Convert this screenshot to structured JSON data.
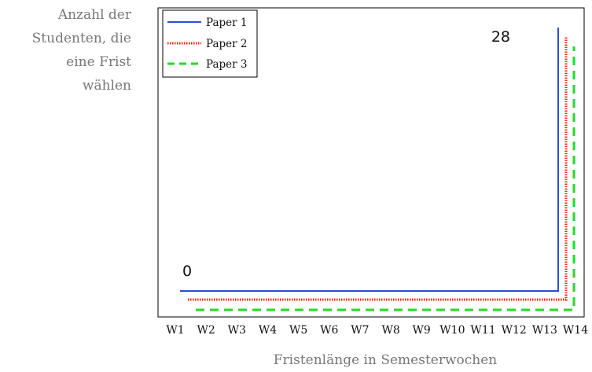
{
  "chart_data": {
    "type": "line",
    "x": [
      "W1",
      "W2",
      "W3",
      "W4",
      "W5",
      "W6",
      "W7",
      "W8",
      "W9",
      "W10",
      "W11",
      "W12",
      "W13",
      "W14"
    ],
    "xlabel": "Fristenlänge in Semesterwochen",
    "ylabel_lines": [
      "Anzahl der",
      "Studenten, die",
      "eine Frist",
      "wählen"
    ],
    "ylim": [
      0,
      28
    ],
    "series": [
      {
        "name": "Paper 1",
        "color": "#2b4fd8",
        "style": "solid",
        "values": [
          0,
          0,
          0,
          0,
          0,
          0,
          0,
          0,
          0,
          0,
          0,
          0,
          0,
          28
        ]
      },
      {
        "name": "Paper 2",
        "color": "#ff2200",
        "style": "dotted",
        "values": [
          0,
          0,
          0,
          0,
          0,
          0,
          0,
          0,
          0,
          0,
          0,
          0,
          0,
          28
        ]
      },
      {
        "name": "Paper 3",
        "color": "#22dd22",
        "style": "dashed",
        "values": [
          0,
          0,
          0,
          0,
          0,
          0,
          0,
          0,
          0,
          0,
          0,
          0,
          0,
          28
        ]
      }
    ],
    "annotations": [
      {
        "text": "0",
        "x": "W1",
        "y": 0
      },
      {
        "text": "28",
        "x": "W13",
        "y": 28
      }
    ],
    "legend_position": "top-left",
    "grid": false
  }
}
